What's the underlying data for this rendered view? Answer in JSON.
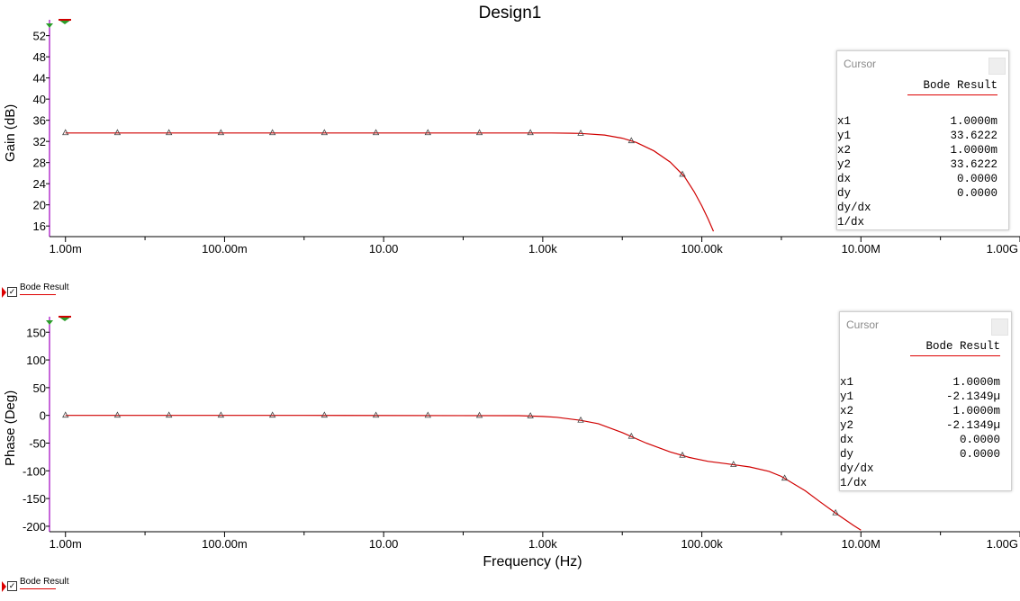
{
  "title": "Design1",
  "colors": {
    "trace": "#d00000",
    "axis": "#a000c0",
    "grid": "#000000"
  },
  "xlabel": "Frequency (Hz)",
  "x_ticks": [
    "1.00m",
    "100.00m",
    "10.00",
    "1.00k",
    "100.00k",
    "10.00M",
    "1.00G"
  ],
  "panels": [
    {
      "ylabel": "Gain (dB)",
      "legend": "Bode Result",
      "cursor": {
        "header": "Cursor",
        "result": "Bode Result",
        "rows": [
          {
            "k": "x1",
            "v": "1.0000m"
          },
          {
            "k": "y1",
            "v": "33.6222"
          },
          {
            "k": "x2",
            "v": "1.0000m"
          },
          {
            "k": "y2",
            "v": "33.6222"
          },
          {
            "k": "dx",
            "v": "0.0000"
          },
          {
            "k": "dy",
            "v": "0.0000"
          },
          {
            "k": "dy/dx",
            "v": ""
          },
          {
            "k": "1/dx",
            "v": ""
          }
        ]
      }
    },
    {
      "ylabel": "Phase (Deg)",
      "legend": "Bode Result",
      "cursor": {
        "header": "Cursor",
        "result": "Bode Result",
        "rows": [
          {
            "k": "x1",
            "v": "1.0000m"
          },
          {
            "k": "y1",
            "v": "-2.1349µ"
          },
          {
            "k": "x2",
            "v": "1.0000m"
          },
          {
            "k": "y2",
            "v": "-2.1349µ"
          },
          {
            "k": "dx",
            "v": "0.0000"
          },
          {
            "k": "dy",
            "v": "0.0000"
          },
          {
            "k": "dy/dx",
            "v": ""
          },
          {
            "k": "1/dx",
            "v": ""
          }
        ]
      }
    }
  ],
  "chart_data": [
    {
      "type": "line",
      "xscale": "log",
      "xlim": [
        0.00063,
        1000000000.0
      ],
      "ylim": [
        14.5,
        55
      ],
      "y_ticks": [
        16,
        20,
        24,
        28,
        32,
        36,
        40,
        44,
        48,
        52
      ],
      "series": [
        {
          "name": "Bode Result",
          "x": [
            0.001,
            0.0045,
            0.02,
            0.09,
            0.4,
            1.8,
            8,
            36,
            160,
            700,
            1300,
            3000,
            6000,
            10000,
            15000,
            25000,
            40000,
            60000,
            80000,
            100000,
            120000,
            140000
          ],
          "y": [
            33.6,
            33.6,
            33.6,
            33.6,
            33.6,
            33.6,
            33.6,
            33.6,
            33.6,
            33.6,
            33.6,
            33.5,
            33.2,
            32.6,
            31.8,
            30.2,
            28.1,
            25.4,
            22.5,
            19.8,
            17.3,
            15.0
          ]
        }
      ],
      "markers_x": [
        0.001,
        0.0045,
        0.02,
        0.09,
        0.4,
        1.8,
        8,
        36,
        160,
        700,
        3000,
        13000,
        57000
      ]
    },
    {
      "type": "line",
      "xscale": "log",
      "xlim": [
        0.00063,
        1000000000.0
      ],
      "ylim": [
        -205,
        178
      ],
      "y_ticks": [
        -200,
        -150,
        -100,
        -50,
        0,
        50,
        100,
        150
      ],
      "series": [
        {
          "name": "Bode Result",
          "x": [
            0.001,
            1,
            500,
            1000,
            1500,
            3000,
            5000,
            10000,
            20000,
            40000,
            70000,
            120000,
            200000,
            400000,
            700000,
            1000000,
            2000000,
            3000000,
            5000000,
            8000000,
            10000000
          ],
          "y": [
            0,
            0,
            -0.5,
            -2,
            -3.5,
            -9,
            -15,
            -31,
            -50,
            -66,
            -76,
            -83,
            -87,
            -93,
            -101,
            -110,
            -136,
            -155,
            -178,
            -198,
            -207
          ]
        }
      ],
      "markers_x": [
        0.001,
        0.0045,
        0.02,
        0.09,
        0.4,
        1.8,
        8,
        36,
        160,
        700,
        3000,
        13000,
        57000,
        250000,
        1100000,
        4800000
      ]
    }
  ]
}
